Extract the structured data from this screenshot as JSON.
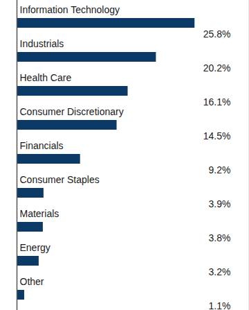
{
  "chart_data": {
    "type": "bar",
    "orientation": "horizontal",
    "categories": [
      "Information Technology",
      "Industrials",
      "Health Care",
      "Consumer Discretionary",
      "Financials",
      "Consumer Staples",
      "Materials",
      "Energy",
      "Other"
    ],
    "values": [
      25.8,
      20.2,
      16.1,
      14.5,
      9.2,
      3.9,
      3.8,
      3.2,
      1.1
    ],
    "value_labels": [
      "25.8%",
      "20.2%",
      "16.1%",
      "14.5%",
      "9.2%",
      "3.9%",
      "3.8%",
      "3.2%",
      "1.1%"
    ],
    "color": "#0c3a66",
    "xlim": [
      0,
      33.6
    ],
    "xticks": [],
    "grid": false,
    "data_labels": true,
    "tick_labels": false
  }
}
